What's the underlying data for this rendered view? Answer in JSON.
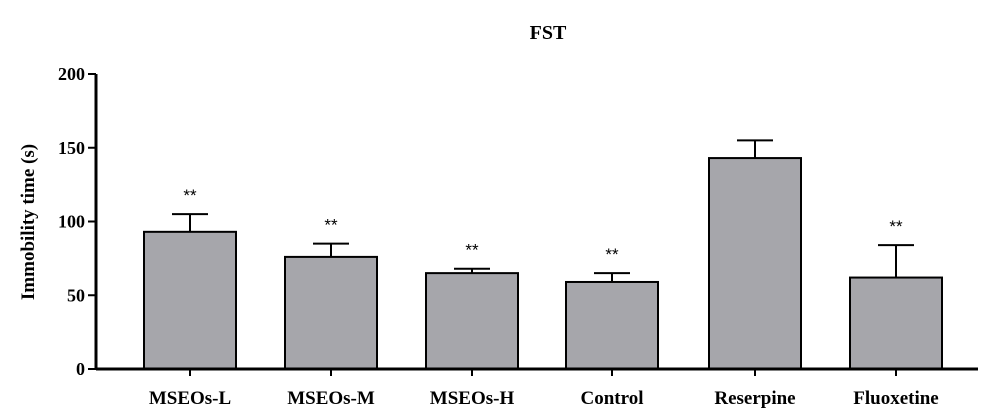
{
  "chart_data": {
    "type": "bar",
    "title": "FST",
    "xlabel": "",
    "ylabel": "Immobility time (s)",
    "ylim": [
      0,
      200
    ],
    "yticks": [
      0,
      50,
      100,
      150,
      200
    ],
    "grid": false,
    "legend": "none",
    "categories": [
      "MSEOs-L",
      "MSEOs-M",
      "MSEOs-H",
      "Control",
      "Reserpine",
      "Fluoxetine"
    ],
    "values": [
      93,
      76,
      65,
      59,
      143,
      62
    ],
    "error_upper": [
      105,
      85,
      68,
      65,
      155,
      84
    ],
    "annotations": [
      "**",
      "**",
      "**",
      "**",
      "",
      "**"
    ],
    "colors": {
      "bar": "#a6a6ab",
      "stroke": "#000000"
    }
  }
}
